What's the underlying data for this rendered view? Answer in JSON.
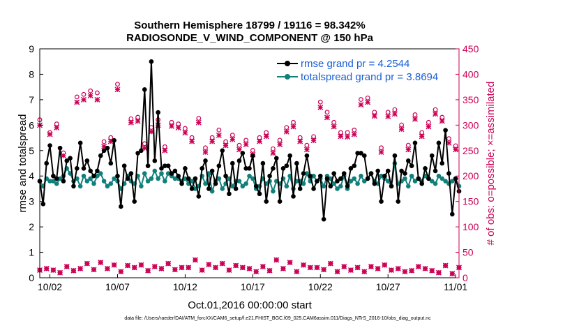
{
  "chart_data": {
    "type": "line",
    "title": "Southern Hemisphere 18799 / 19116 = 98.342%",
    "subtitle": "RADIOSONDE_V_WIND_COMPONENT @ 150 hPa",
    "xlabel": "Oct.01,2016 00:00:00 start",
    "ylabel_left": "rmse and totalspread",
    "ylabel_right": "# of obs: o=possible; ×=assimilated",
    "footer": "data file: /Users/raeder/DAI/ATM_forcXX/CAM6_setup/f.e21.FHIST_BGC.f09_025.CAM6assim.011/Diags_NTrS_2016-10/obs_diag_output.nc",
    "x_ticks": [
      "10/02",
      "10/07",
      "10/12",
      "10/17",
      "10/22",
      "10/27",
      "11/01"
    ],
    "xlim": [
      0.25,
      31.25
    ],
    "ylim_left": [
      0,
      9
    ],
    "left_ticks": [
      0,
      1,
      2,
      3,
      4,
      5,
      6,
      7,
      8,
      9
    ],
    "ylim_right": [
      0,
      450
    ],
    "right_ticks": [
      0,
      50,
      100,
      150,
      200,
      250,
      300,
      350,
      400,
      450
    ],
    "legend": {
      "rmse": "rmse grand pr = 4.2544",
      "spread": "totalspread grand pr = 3.8694"
    },
    "colors": {
      "rmse": "#000000",
      "spread": "#12807a",
      "obs": "#cc0055",
      "legend_text": "#1a5fd6"
    },
    "series": [
      {
        "name": "rmse",
        "x": [
          0.25,
          0.5,
          0.75,
          1.0,
          1.25,
          1.5,
          1.75,
          2.0,
          2.25,
          2.5,
          2.75,
          3.0,
          3.25,
          3.5,
          3.75,
          4.0,
          4.25,
          4.5,
          4.75,
          5.0,
          5.25,
          5.5,
          5.75,
          6.0,
          6.25,
          6.5,
          6.75,
          7.0,
          7.25,
          7.5,
          7.75,
          8.0,
          8.25,
          8.5,
          8.75,
          9.0,
          9.25,
          9.5,
          9.75,
          10.0,
          10.25,
          10.5,
          10.75,
          11.0,
          11.25,
          11.5,
          11.75,
          12.0,
          12.25,
          12.5,
          12.75,
          13.0,
          13.25,
          13.5,
          13.75,
          14.0,
          14.25,
          14.5,
          14.75,
          15.0,
          15.25,
          15.5,
          15.75,
          16.0,
          16.25,
          16.5,
          16.75,
          17.0,
          17.25,
          17.5,
          17.75,
          18.0,
          18.25,
          18.5,
          18.75,
          19.0,
          19.25,
          19.5,
          19.75,
          20.0,
          20.25,
          20.5,
          20.75,
          21.0,
          21.25,
          21.5,
          21.75,
          22.0,
          22.25,
          22.5,
          22.75,
          23.0,
          23.25,
          23.5,
          23.75,
          24.0,
          24.25,
          24.5,
          24.75,
          25.0,
          25.25,
          25.5,
          25.75,
          26.0,
          26.25,
          26.5,
          26.75,
          27.0,
          27.25,
          27.5,
          27.75,
          28.0,
          28.25,
          28.5,
          28.75,
          29.0,
          29.25,
          29.5,
          29.75,
          30.0,
          30.25,
          30.5,
          30.75,
          31.0,
          31.25
        ],
        "values": [
          3.8,
          2.9,
          4.5,
          5.2,
          4.0,
          3.9,
          5.1,
          3.8,
          4.6,
          4.7,
          3.6,
          4.3,
          5.3,
          4.3,
          4.6,
          4.2,
          4.0,
          4.2,
          4.8,
          5.0,
          5.1,
          4.5,
          5.4,
          4.0,
          2.8,
          4.4,
          3.9,
          4.1,
          3.0,
          4.9,
          5.0,
          7.4,
          4.4,
          8.5,
          4.6,
          6.5,
          4.3,
          4.4,
          4.4,
          4.1,
          4.2,
          4.0,
          3.7,
          4.3,
          3.9,
          3.5,
          3.9,
          3.2,
          4.3,
          4.6,
          3.5,
          4.2,
          3.7,
          4.4,
          5.0,
          4.0,
          3.3,
          4.5,
          3.5,
          4.6,
          4.9,
          4.3,
          4.3,
          4.8,
          3.6,
          3.3,
          4.5,
          3.0,
          4.0,
          4.3,
          4.7,
          3.0,
          4.3,
          4.4,
          4.8,
          3.2,
          4.5,
          3.5,
          4.1,
          4.8,
          4.0,
          3.5,
          3.8,
          4.0,
          2.3,
          3.9,
          3.6,
          4.1,
          3.8,
          3.9,
          4.1,
          3.6,
          4.3,
          4.4,
          4.9,
          4.9,
          4.8,
          3.9,
          4.1,
          3.7,
          4.2,
          3.0,
          4.0,
          4.2,
          3.6,
          4.8,
          3.0,
          4.2,
          4.1,
          4.6,
          4.4,
          5.3,
          3.9,
          3.7,
          4.3,
          3.9,
          4.8,
          4.2,
          5.3,
          4.5,
          5.8,
          4.1,
          2.5,
          3.9,
          3.4
        ]
      },
      {
        "name": "totalspread",
        "x": [
          0.25,
          0.5,
          0.75,
          1.0,
          1.25,
          1.5,
          1.75,
          2.0,
          2.25,
          2.5,
          2.75,
          3.0,
          3.25,
          3.5,
          3.75,
          4.0,
          4.25,
          4.5,
          4.75,
          5.0,
          5.25,
          5.5,
          5.75,
          6.0,
          6.25,
          6.5,
          6.75,
          7.0,
          7.25,
          7.5,
          7.75,
          8.0,
          8.25,
          8.5,
          8.75,
          9.0,
          9.25,
          9.5,
          9.75,
          10.0,
          10.25,
          10.5,
          10.75,
          11.0,
          11.25,
          11.5,
          11.75,
          12.0,
          12.25,
          12.5,
          12.75,
          13.0,
          13.25,
          13.5,
          13.75,
          14.0,
          14.25,
          14.5,
          14.75,
          15.0,
          15.25,
          15.5,
          15.75,
          16.0,
          16.25,
          16.5,
          16.75,
          17.0,
          17.25,
          17.5,
          17.75,
          18.0,
          18.25,
          18.5,
          18.75,
          19.0,
          19.25,
          19.5,
          19.75,
          20.0,
          20.25,
          20.5,
          20.75,
          21.0,
          21.25,
          21.5,
          21.75,
          22.0,
          22.25,
          22.5,
          22.75,
          23.0,
          23.25,
          23.5,
          23.75,
          24.0,
          24.25,
          24.5,
          24.75,
          25.0,
          25.25,
          25.5,
          25.75,
          26.0,
          26.25,
          26.5,
          26.75,
          27.0,
          27.25,
          27.5,
          27.75,
          28.0,
          28.25,
          28.5,
          28.75,
          29.0,
          29.25,
          29.5,
          29.75,
          30.0,
          30.25,
          30.5,
          30.75,
          31.0,
          31.25
        ],
        "values": [
          3.8,
          3.6,
          3.9,
          3.8,
          3.8,
          3.7,
          3.9,
          4.0,
          4.3,
          4.1,
          3.8,
          3.9,
          3.6,
          4.0,
          3.8,
          3.9,
          3.7,
          4.0,
          4.1,
          3.8,
          3.6,
          3.7,
          3.9,
          3.8,
          3.5,
          3.7,
          4.0,
          3.8,
          3.7,
          4.0,
          3.6,
          4.1,
          3.8,
          3.9,
          4.2,
          3.9,
          4.1,
          3.8,
          4.1,
          4.0,
          3.9,
          3.9,
          3.8,
          3.9,
          3.7,
          3.8,
          3.5,
          3.6,
          4.0,
          3.7,
          4.1,
          3.4,
          3.8,
          3.9,
          3.5,
          3.7,
          3.9,
          3.6,
          3.8,
          3.8,
          3.6,
          3.7,
          4.0,
          3.9,
          3.5,
          3.6,
          3.9,
          3.7,
          3.8,
          3.4,
          3.8,
          3.7,
          3.9,
          3.6,
          4.0,
          3.5,
          3.8,
          3.8,
          3.7,
          4.1,
          3.8,
          4.0,
          3.8,
          3.9,
          3.6,
          4.0,
          3.9,
          3.7,
          3.5,
          3.6,
          4.0,
          3.5,
          3.8,
          3.9,
          3.7,
          4.0,
          3.8,
          3.9,
          4.1,
          3.8,
          3.7,
          4.0,
          3.9,
          3.8,
          3.6,
          4.5,
          3.7,
          3.8,
          3.9,
          3.6,
          4.0,
          3.8,
          3.9,
          3.8,
          4.0,
          3.9,
          3.8,
          3.7,
          4.0,
          3.9,
          3.8,
          3.7,
          3.8,
          3.9,
          3.6
        ]
      }
    ],
    "obs_possible": {
      "x": [
        0.25,
        1.0,
        1.5,
        2.0,
        3.0,
        3.5,
        4.0,
        4.5,
        5.0,
        5.5,
        6.0,
        7.0,
        7.5,
        8.0,
        8.5,
        9.0,
        9.5,
        10.0,
        10.5,
        11.0,
        11.5,
        12.0,
        12.5,
        13.0,
        13.5,
        14.0,
        14.5,
        15.0,
        15.5,
        16.0,
        16.5,
        17.0,
        17.5,
        18.0,
        18.5,
        19.0,
        19.5,
        20.0,
        20.5,
        21.0,
        21.5,
        22.0,
        22.5,
        23.0,
        23.5,
        24.0,
        24.5,
        25.0,
        25.5,
        26.0,
        26.5,
        27.0,
        27.5,
        28.0,
        28.5,
        29.0,
        29.5,
        30.0,
        30.5,
        31.0
      ],
      "values": [
        305,
        280,
        297,
        240,
        350,
        355,
        362,
        358,
        262,
        270,
        375,
        307,
        310,
        258,
        290,
        305,
        252,
        300,
        297,
        288,
        270,
        308,
        250,
        270,
        285,
        262,
        275,
        255,
        265,
        245,
        270,
        280,
        248,
        265,
        290,
        300,
        270,
        255,
        272,
        340,
        320,
        300,
        280,
        280,
        285,
        345,
        348,
        320,
        250,
        320,
        325,
        295,
        255,
        315,
        280,
        300,
        325,
        310,
        268,
        254
      ],
      "assimilated": [
        300,
        282,
        295,
        240,
        345,
        350,
        358,
        350,
        258,
        268,
        370,
        305,
        308,
        255,
        287,
        300,
        250,
        298,
        295,
        285,
        268,
        305,
        247,
        268,
        280,
        260,
        272,
        252,
        262,
        242,
        268,
        278,
        245,
        262,
        287,
        297,
        268,
        252,
        270,
        335,
        315,
        297,
        278,
        277,
        282,
        340,
        345,
        318,
        247,
        317,
        322,
        292,
        252,
        312,
        278,
        297,
        322,
        308,
        265,
        252
      ]
    },
    "obs_low": {
      "x": [
        0.25,
        0.75,
        1.25,
        1.75,
        2.25,
        2.75,
        3.25,
        3.75,
        4.25,
        4.75,
        5.25,
        5.75,
        6.25,
        6.75,
        7.25,
        7.75,
        8.25,
        8.75,
        9.25,
        9.75,
        10.25,
        10.75,
        11.25,
        11.75,
        12.25,
        12.75,
        13.25,
        13.75,
        14.25,
        14.75,
        15.25,
        15.75,
        16.25,
        16.75,
        17.25,
        17.75,
        18.25,
        18.75,
        19.25,
        19.75,
        20.25,
        20.75,
        21.25,
        21.75,
        22.25,
        22.75,
        23.25,
        23.75,
        24.25,
        24.75,
        25.25,
        25.75,
        26.25,
        26.75,
        27.25,
        27.75,
        28.25,
        28.75,
        29.25,
        29.75,
        30.25,
        30.75,
        31.25
      ],
      "values": [
        15,
        18,
        15,
        10,
        22,
        14,
        18,
        28,
        16,
        30,
        18,
        25,
        12,
        24,
        20,
        25,
        14,
        22,
        18,
        28,
        16,
        20,
        20,
        35,
        15,
        26,
        20,
        28,
        15,
        24,
        20,
        18,
        12,
        22,
        14,
        35,
        18,
        30,
        12,
        25,
        20,
        20,
        16,
        28,
        12,
        22,
        15,
        20,
        12,
        22,
        18,
        25,
        15,
        18,
        12,
        14,
        22,
        18,
        14,
        10,
        24,
        8,
        20
      ]
    }
  }
}
